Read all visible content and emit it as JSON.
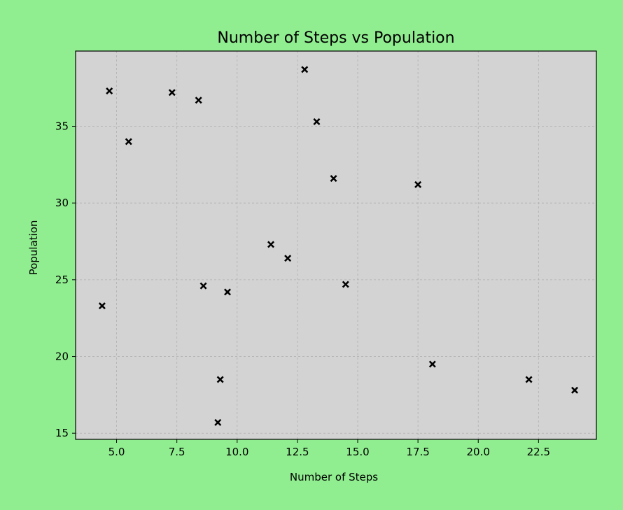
{
  "chart_data": {
    "type": "scatter",
    "title": "Number of Steps vs Population",
    "xlabel": "Number of Steps",
    "ylabel": "Population",
    "xlim": [
      3.3,
      24.9
    ],
    "ylim": [
      14.6,
      39.9
    ],
    "xticks": [
      5.0,
      7.5,
      10.0,
      12.5,
      15.0,
      17.5,
      20.0,
      22.5
    ],
    "xtick_labels": [
      "5.0",
      "7.5",
      "10.0",
      "12.5",
      "15.0",
      "17.5",
      "20.0",
      "22.5"
    ],
    "yticks": [
      15,
      20,
      25,
      30,
      35
    ],
    "ytick_labels": [
      "15",
      "20",
      "25",
      "30",
      "35"
    ],
    "grid": true,
    "marker": "x-filled",
    "colors": {
      "figure_background": "#90ee90",
      "plot_background": "#d3d3d3",
      "marker": "#000000",
      "grid": "#b0b0b0"
    },
    "points": [
      {
        "x": 4.4,
        "y": 23.3
      },
      {
        "x": 4.7,
        "y": 37.3
      },
      {
        "x": 5.5,
        "y": 34.0
      },
      {
        "x": 7.3,
        "y": 37.2
      },
      {
        "x": 8.4,
        "y": 36.7
      },
      {
        "x": 8.6,
        "y": 24.6
      },
      {
        "x": 9.2,
        "y": 15.7
      },
      {
        "x": 9.3,
        "y": 18.5
      },
      {
        "x": 9.6,
        "y": 24.2
      },
      {
        "x": 11.4,
        "y": 27.3
      },
      {
        "x": 12.1,
        "y": 26.4
      },
      {
        "x": 12.8,
        "y": 38.7
      },
      {
        "x": 13.3,
        "y": 35.3
      },
      {
        "x": 14.0,
        "y": 31.6
      },
      {
        "x": 14.5,
        "y": 24.7
      },
      {
        "x": 17.5,
        "y": 31.2
      },
      {
        "x": 18.1,
        "y": 19.5
      },
      {
        "x": 22.1,
        "y": 18.5
      },
      {
        "x": 24.0,
        "y": 17.8
      }
    ]
  }
}
